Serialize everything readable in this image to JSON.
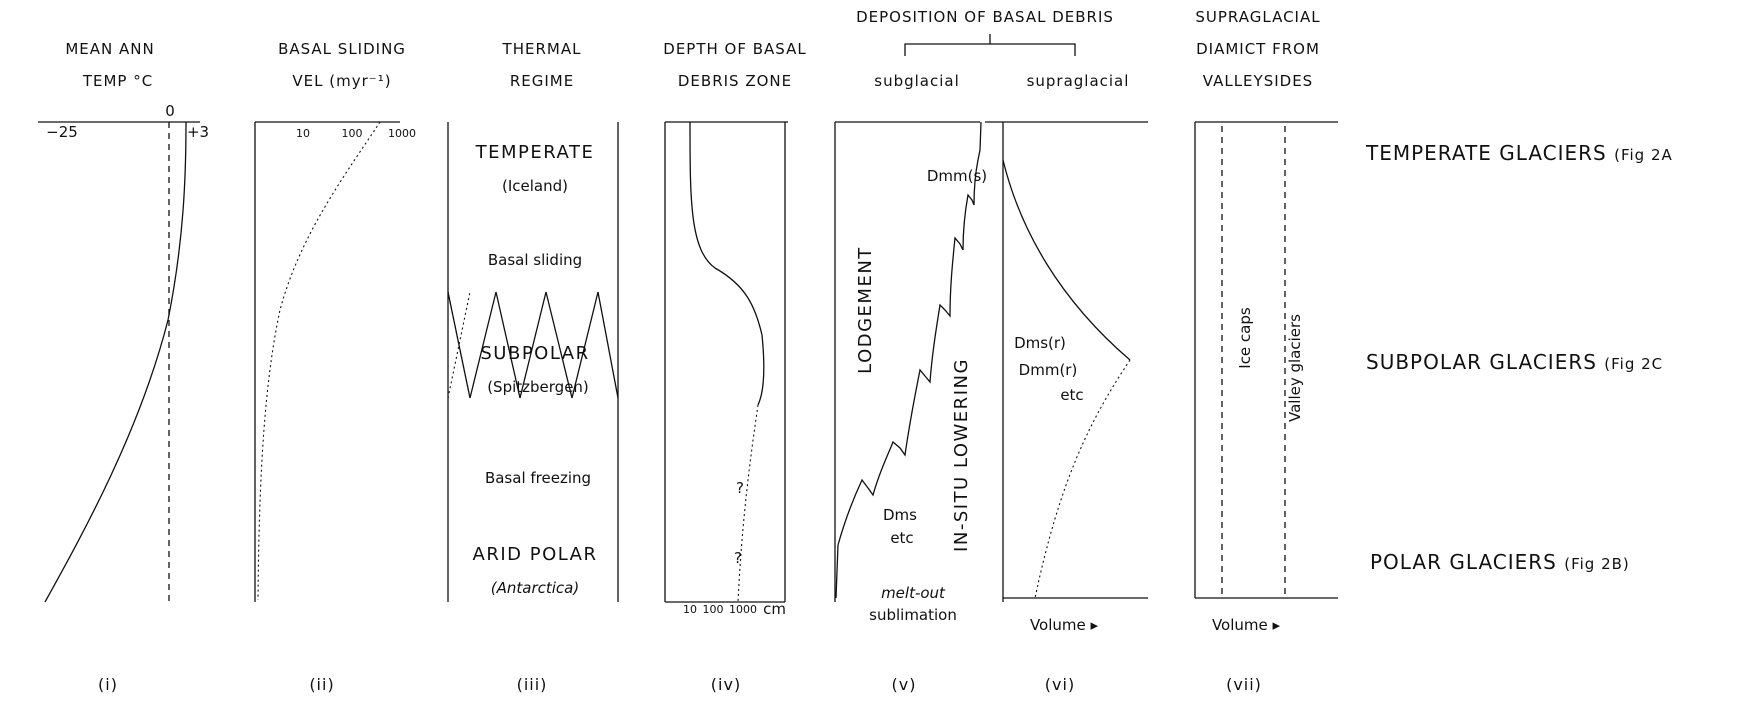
{
  "headers": {
    "col1_line1": "MEAN ANN",
    "col1_line2": "TEMP °C",
    "col2_line1": "BASAL SLIDING",
    "col2_line2": "VEL (myr⁻¹)",
    "col3_line1": "THERMAL",
    "col3_line2": "REGIME",
    "col4_line1": "DEPTH OF BASAL",
    "col4_line2": "DEBRIS ZONE",
    "col56_title": "DEPOSITION OF BASAL DEBRIS",
    "col5_sub": "subglacial",
    "col6_sub": "supraglacial",
    "col7_line1": "SUPRAGLACIAL",
    "col7_line2": "DIAMICT FROM",
    "col7_line3": "VALLEYSIDES"
  },
  "panel1": {
    "tick_left": "−25",
    "tick_zero": "0",
    "tick_right": "+3"
  },
  "panel2": {
    "tick_10": "10",
    "tick_100": "100",
    "tick_1000": "1000"
  },
  "panel3": {
    "temperate": "TEMPERATE",
    "iceland": "(Iceland)",
    "basal_sliding": "Basal sliding",
    "subpolar": "SUBPOLAR",
    "spitzbergen": "(Spitzbergen)",
    "basal_freezing": "Basal freezing",
    "arid_polar": "ARID POLAR",
    "antarctica": "(Antarctica)"
  },
  "panel4": {
    "tick_10": "10",
    "tick_100": "100",
    "tick_1000": "1000",
    "unit": "cm",
    "q1": "?",
    "q2": "?"
  },
  "panel5": {
    "dmm_s": "Dmm(s)",
    "lodgement": "LODGEMENT",
    "insitu": "IN-SITU LOWERING",
    "dms": "Dms",
    "etc": "etc",
    "meltout": "melt-out",
    "sublimation": "sublimation"
  },
  "panel6": {
    "dms_r": "Dms(r)",
    "dmm_r": "Dmm(r)",
    "etc": "etc",
    "volume": "Volume ▸"
  },
  "panel7": {
    "ice_caps": "Ice caps",
    "valley_glaciers": "Valley glaciers",
    "volume": "Volume ▸"
  },
  "right_labels": {
    "temperate": "TEMPERATE GLACIERS",
    "temperate_ref": "(Fig 2A",
    "subpolar": "SUBPOLAR GLACIERS",
    "subpolar_ref": "(Fig 2C",
    "polar": "POLAR GLACIERS",
    "polar_ref": "(Fig 2B)"
  },
  "panel_numbers": [
    "(i)",
    "(ii)",
    "(iii)",
    "(iv)",
    "(v)",
    "(vi)",
    "(vii)"
  ]
}
